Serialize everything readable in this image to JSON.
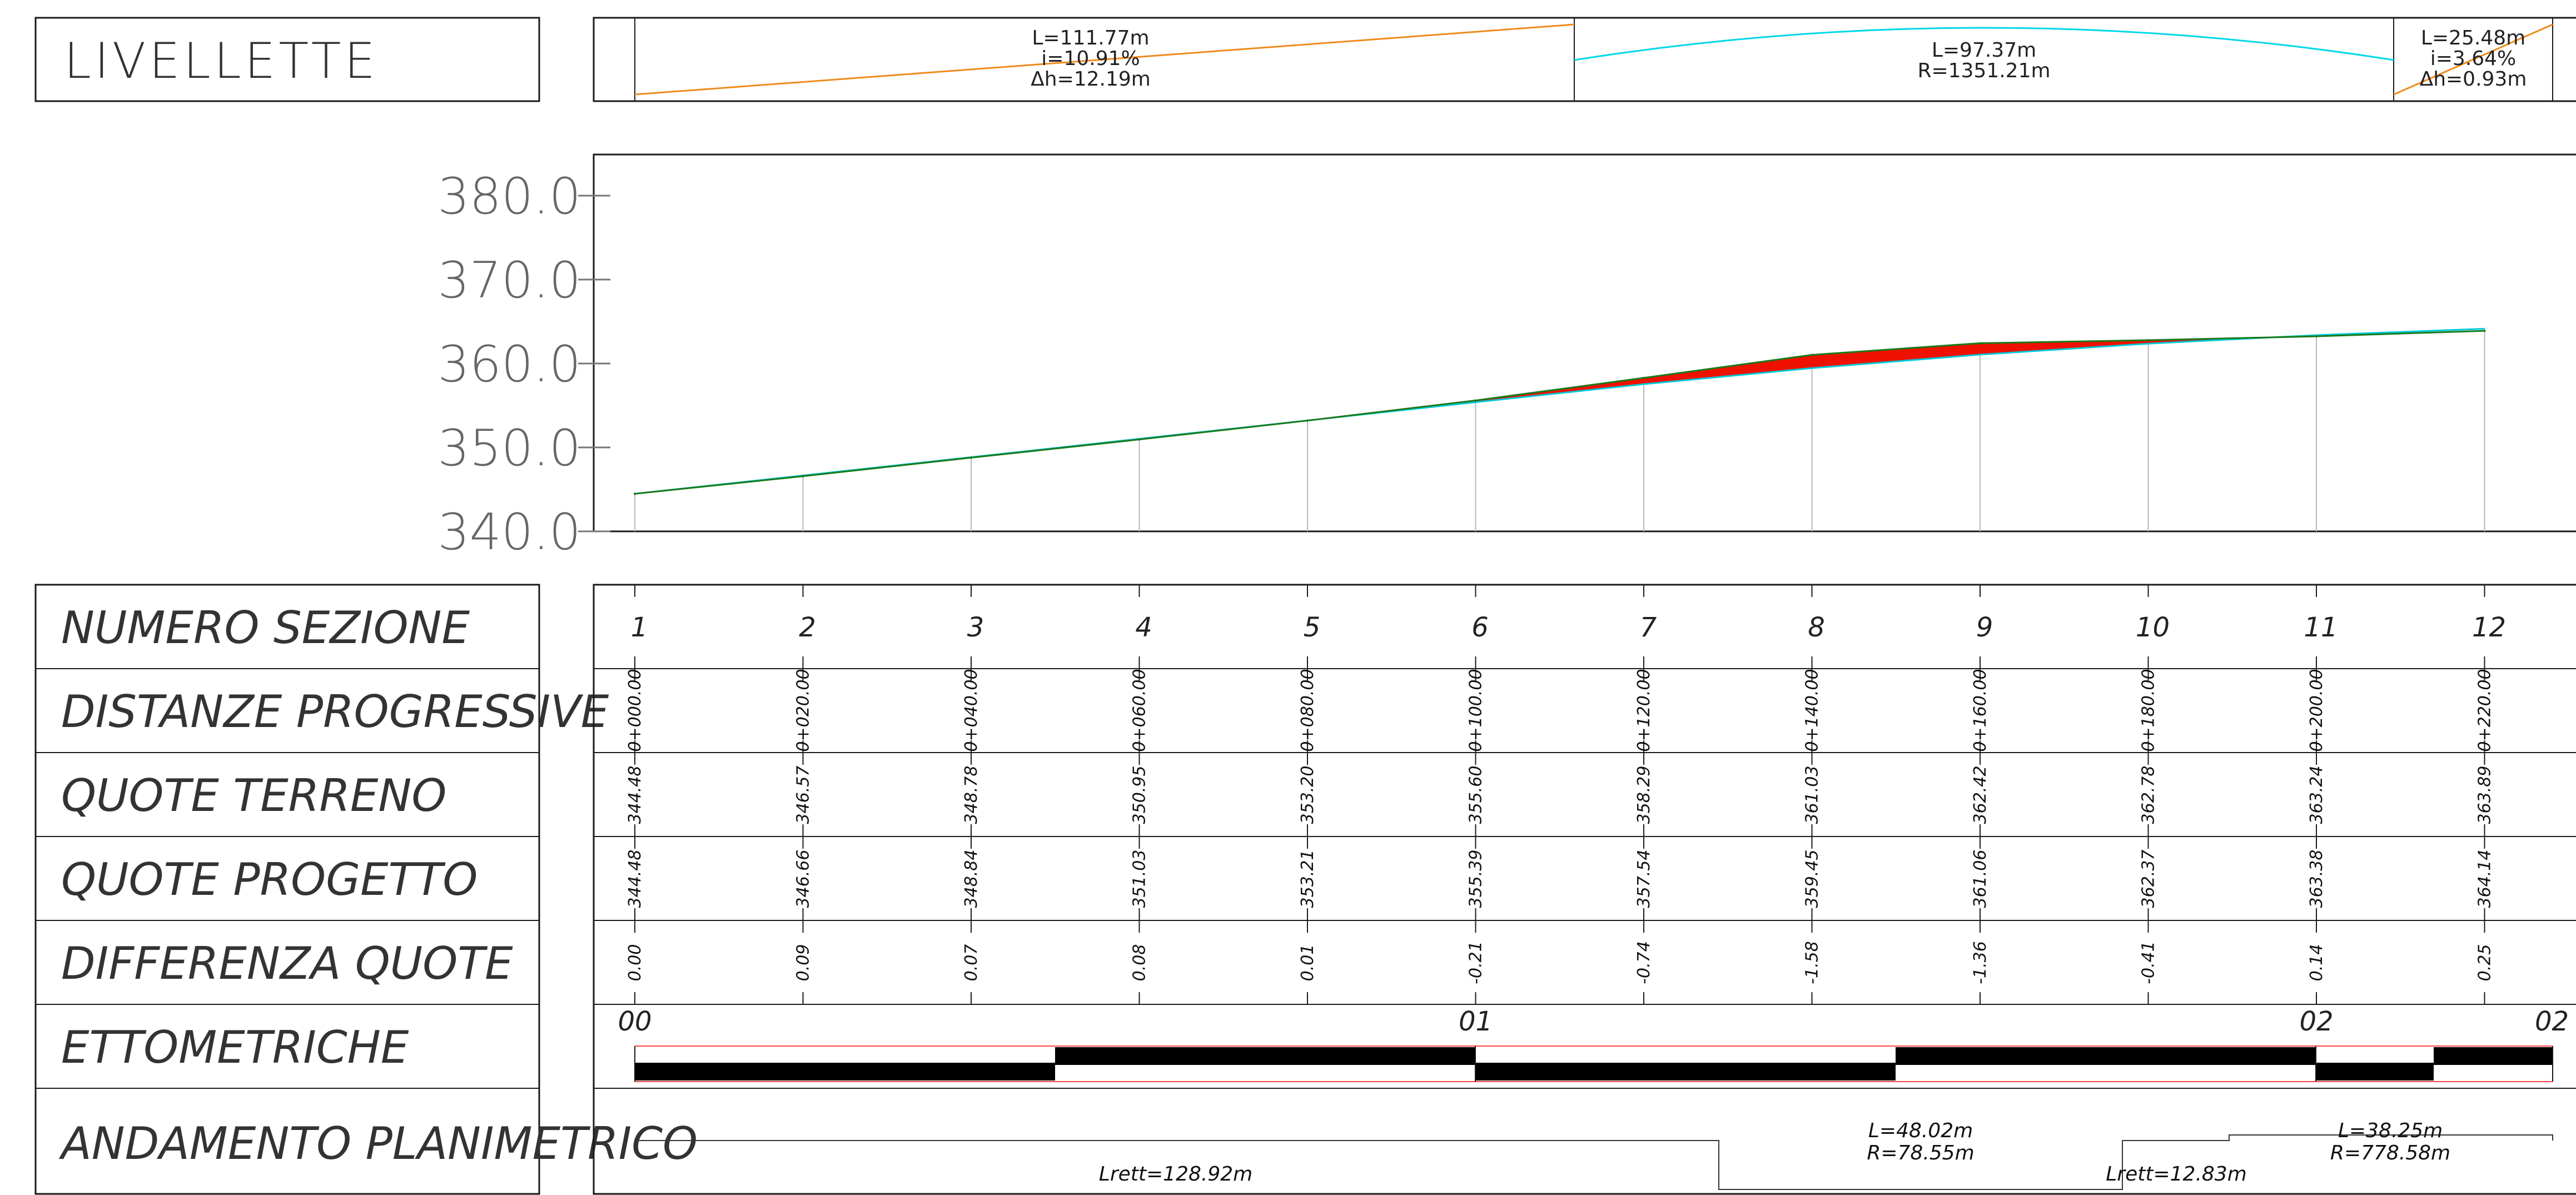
{
  "header": {
    "title": "LIVELLETTE",
    "segments": [
      {
        "lines": [
          "L=111.77m",
          "i=10.91%",
          "Δh=12.19m"
        ],
        "color": "#f08a1c",
        "kind": "grade"
      },
      {
        "lines": [
          "L=97.37m",
          "R=1351.21m"
        ],
        "color": "#00d8e8",
        "kind": "curve"
      },
      {
        "lines": [
          "L=25.48m",
          "i=3.64%",
          "Δh=0.93m"
        ],
        "color": "#f08a1c",
        "kind": "grade"
      }
    ]
  },
  "chart_data": {
    "type": "line",
    "ylim": [
      340,
      380
    ],
    "y_ticks": [
      "380.0",
      "370.0",
      "360.0",
      "350.0",
      "340.0"
    ],
    "y_tick_values": [
      380,
      370,
      360,
      350,
      340
    ],
    "sections": [
      {
        "numero": "1",
        "distanza": "0+000.00",
        "terreno": "344.48",
        "progetto": "344.48",
        "differenza": "0.00"
      },
      {
        "numero": "2",
        "distanza": "0+020.00",
        "terreno": "346.57",
        "progetto": "346.66",
        "differenza": "0.09"
      },
      {
        "numero": "3",
        "distanza": "0+040.00",
        "terreno": "348.78",
        "progetto": "348.84",
        "differenza": "0.07"
      },
      {
        "numero": "4",
        "distanza": "0+060.00",
        "terreno": "350.95",
        "progetto": "351.03",
        "differenza": "0.08"
      },
      {
        "numero": "5",
        "distanza": "0+080.00",
        "terreno": "353.20",
        "progetto": "353.21",
        "differenza": "0.01"
      },
      {
        "numero": "6",
        "distanza": "0+100.00",
        "terreno": "355.60",
        "progetto": "355.39",
        "differenza": "-0.21"
      },
      {
        "numero": "7",
        "distanza": "0+120.00",
        "terreno": "358.29",
        "progetto": "357.54",
        "differenza": "-0.74"
      },
      {
        "numero": "8",
        "distanza": "0+140.00",
        "terreno": "361.03",
        "progetto": "359.45",
        "differenza": "-1.58"
      },
      {
        "numero": "9",
        "distanza": "0+160.00",
        "terreno": "362.42",
        "progetto": "361.06",
        "differenza": "-1.36"
      },
      {
        "numero": "10",
        "distanza": "0+180.00",
        "terreno": "362.78",
        "progetto": "362.37",
        "differenza": "-0.41"
      },
      {
        "numero": "11",
        "distanza": "0+200.00",
        "terreno": "363.24",
        "progetto": "363.38",
        "differenza": "0.14"
      },
      {
        "numero": "12",
        "distanza": "0+220.00",
        "terreno": "363.89",
        "progetto": "364.14",
        "differenza": "0.25"
      }
    ],
    "colors": {
      "terrain": "#1a7a1a",
      "project": "#00c8d8",
      "fill": "#ee1100",
      "project_line": "#3fd63f"
    }
  },
  "rows": {
    "numero": "NUMERO SEZIONE",
    "distanze": "DISTANZE PROGRESSIVE",
    "terreno": "QUOTE TERRENO",
    "progetto": "QUOTE PROGETTO",
    "differenza": "DIFFERENZA QUOTE",
    "ettometriche": "ETTOMETRICHE",
    "andamento": "ANDAMENTO PLANIMETRICO"
  },
  "ettometriche": {
    "labels": [
      "00",
      "01",
      "02",
      "02"
    ],
    "label_positions_m": [
      0,
      100,
      200,
      228
    ]
  },
  "andamento": {
    "labels": {
      "rett1": "Lrett=128.92m",
      "curve1": [
        "L=48.02m",
        "R=78.55m"
      ],
      "rett2": "Lrett=12.83m",
      "curve2": [
        "L=38.25m",
        "R=778.58m"
      ]
    }
  }
}
